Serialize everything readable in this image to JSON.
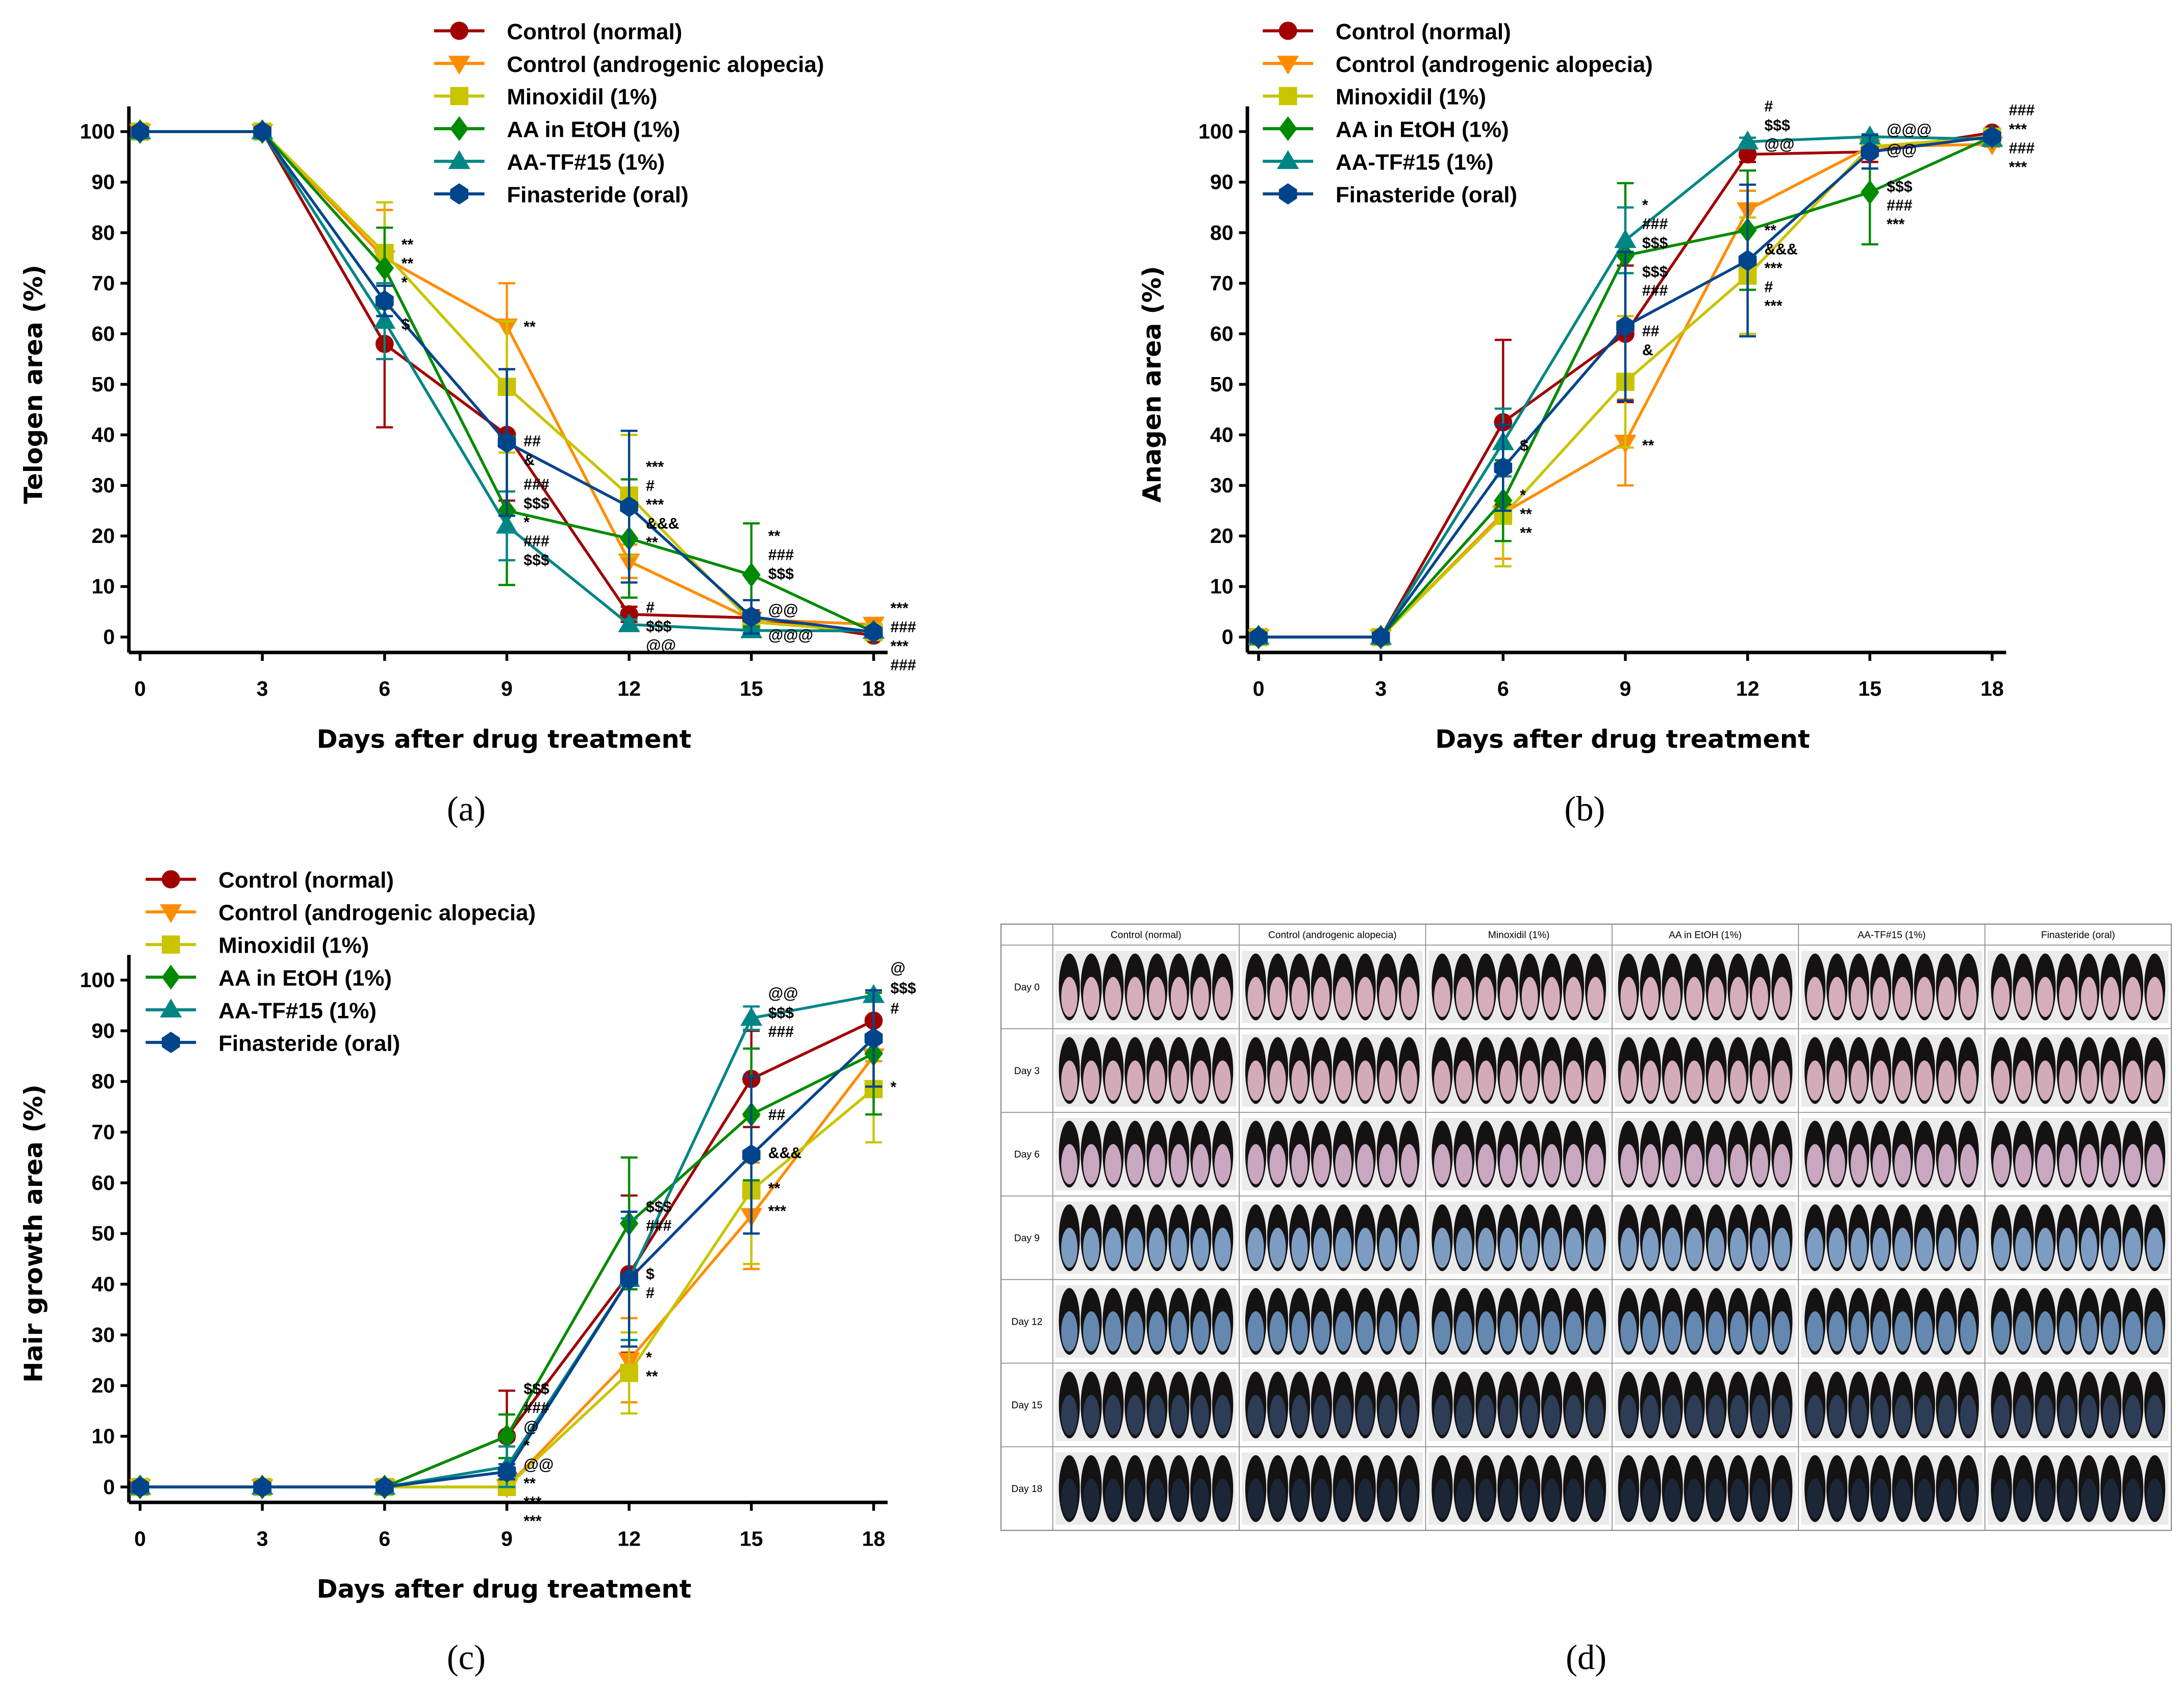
{
  "series_style": [
    {
      "name": "Control (normal)",
      "color": "#a00000",
      "marker": "circle"
    },
    {
      "name": "Control (androgenic alopecia)",
      "color": "#ff8c00",
      "marker": "triangle-down"
    },
    {
      "name": "Minoxidil (1%)",
      "color": "#c8c400",
      "marker": "square"
    },
    {
      "name": "AA in EtOH (1%)",
      "color": "#008a00",
      "marker": "diamond"
    },
    {
      "name": "AA-TF#15 (1%)",
      "color": "#008585",
      "marker": "triangle-up"
    },
    {
      "name": "Finasteride (oral)",
      "color": "#00448c",
      "marker": "hexagon"
    }
  ],
  "chart_data": [
    {
      "panel": "(a)",
      "type": "line",
      "xlabel": "Days after drug treatment",
      "ylabel": "Telogen area (%)",
      "x": [
        0,
        3,
        6,
        9,
        12,
        15,
        18
      ],
      "xticks": [
        "0",
        "3",
        "6",
        "9",
        "12",
        "15",
        "18"
      ],
      "yticks": [
        "0",
        "10",
        "20",
        "30",
        "40",
        "50",
        "60",
        "70",
        "80",
        "90",
        "100"
      ],
      "ylim": [
        0,
        100
      ],
      "legend": "top-center",
      "series": [
        {
          "name": "Control (normal)",
          "values": [
            100,
            100,
            58,
            40,
            4.5,
            3.8,
            0.3
          ],
          "errors": [
            0,
            0,
            16.5,
            13,
            1.5,
            1.5,
            0
          ]
        },
        {
          "name": "Control (androgenic alopecia)",
          "values": [
            100,
            100,
            75,
            61.5,
            15,
            3.5,
            2.5
          ],
          "errors": [
            0,
            0,
            9.5,
            8.5,
            3.3,
            1.5,
            0
          ]
        },
        {
          "name": "Minoxidil (1%)",
          "values": [
            100,
            100,
            76,
            49.5,
            28,
            3,
            1
          ],
          "errors": [
            0,
            0,
            10,
            13,
            12,
            1.5,
            0
          ]
        },
        {
          "name": "AA in EtOH (1%)",
          "values": [
            100,
            100,
            73,
            25,
            19.5,
            12.3,
            1
          ],
          "errors": [
            0,
            0,
            8,
            14.7,
            11.7,
            10.2,
            0
          ]
        },
        {
          "name": "AA-TF#15 (1%)",
          "values": [
            100,
            100,
            62.5,
            22,
            2.5,
            1.3,
            1.2
          ],
          "errors": [
            0,
            0,
            7.5,
            6.8,
            1,
            0.5,
            0
          ]
        },
        {
          "name": "Finasteride (oral)",
          "values": [
            100,
            100,
            66.5,
            38.5,
            25.8,
            4,
            1
          ],
          "errors": [
            0,
            0,
            3,
            14.5,
            15,
            3.3,
            0
          ]
        }
      ],
      "annotations": [
        {
          "x": 6,
          "y": 76.5,
          "text": "**"
        },
        {
          "x": 6,
          "y": 74,
          "text": "**"
        },
        {
          "x": 6,
          "y": 71.5,
          "text": "*"
        },
        {
          "x": 6,
          "y": 62,
          "text": "$"
        },
        {
          "x": 9,
          "y": 61.5,
          "text": "**"
        },
        {
          "x": 9,
          "y": 38.5,
          "text": "##"
        },
        {
          "x": 9,
          "y": 35.5,
          "text": "&"
        },
        {
          "x": 9,
          "y": 29.5,
          "text": "###"
        },
        {
          "x": 9,
          "y": 26,
          "text": "$$$"
        },
        {
          "x": 9,
          "y": 22.5,
          "text": "*"
        },
        {
          "x": 9,
          "y": 19.5,
          "text": "###"
        },
        {
          "x": 9,
          "y": 16.5,
          "text": "$$$"
        },
        {
          "x": 12,
          "y": 33,
          "text": "***"
        },
        {
          "x": 12,
          "y": 30.5,
          "text": "#"
        },
        {
          "x": 12,
          "y": 26,
          "text": "***"
        },
        {
          "x": 12,
          "y": 23,
          "text": "&&&"
        },
        {
          "x": 12,
          "y": 19,
          "text": "**"
        },
        {
          "x": 12,
          "y": 5.5,
          "text": "#"
        },
        {
          "x": 12,
          "y": 2,
          "text": "$$$"
        },
        {
          "x": 12,
          "y": -0.8,
          "text": "@@"
        },
        {
          "x": 15,
          "y": 19.5,
          "text": "**"
        },
        {
          "x": 15,
          "y": 16.5,
          "text": "###"
        },
        {
          "x": 15,
          "y": 13,
          "text": "$$$"
        },
        {
          "x": 15,
          "y": 5.5,
          "text": "@@"
        },
        {
          "x": 15,
          "y": 0.5,
          "text": "@@@"
        },
        {
          "x": 18,
          "y": 4.3,
          "text": "***"
        },
        {
          "x": 18,
          "y": 1.5,
          "text": "###"
        },
        {
          "x": 18,
          "y": -1.3,
          "text": "***"
        },
        {
          "x": 18,
          "y": -3.8,
          "text": "###"
        }
      ]
    },
    {
      "panel": "(b)",
      "type": "line",
      "xlabel": "Days after drug treatment",
      "ylabel": "Anagen area (%)",
      "x": [
        0,
        3,
        6,
        9,
        12,
        15,
        18
      ],
      "xticks": [
        "0",
        "3",
        "6",
        "9",
        "12",
        "15",
        "18"
      ],
      "yticks": [
        "0",
        "10",
        "20",
        "30",
        "40",
        "50",
        "60",
        "70",
        "80",
        "90",
        "100"
      ],
      "ylim": [
        0,
        100
      ],
      "legend": "top-center",
      "series": [
        {
          "name": "Control (normal)",
          "values": [
            0,
            0,
            42.5,
            60,
            95.5,
            96,
            99.8
          ],
          "errors": [
            0,
            0,
            16.3,
            13.5,
            1.5,
            2,
            0
          ]
        },
        {
          "name": "Control (androgenic alopecia)",
          "values": [
            0,
            0,
            24.5,
            38.5,
            84.5,
            97,
            97.5
          ],
          "errors": [
            0,
            0,
            9,
            8.5,
            3.8,
            1.5,
            0.5
          ]
        },
        {
          "name": "Minoxidil (1%)",
          "values": [
            0,
            0,
            24,
            50.5,
            71.5,
            97,
            99
          ],
          "errors": [
            0,
            0,
            10,
            13,
            11.5,
            1.5,
            0
          ]
        },
        {
          "name": "AA in EtOH (1%)",
          "values": [
            0,
            0,
            27,
            75.5,
            80.5,
            88,
            99
          ],
          "errors": [
            0,
            0,
            8,
            14.3,
            11.8,
            10.3,
            0
          ]
        },
        {
          "name": "AA-TF#15 (1%)",
          "values": [
            0,
            0,
            38.5,
            78.5,
            98,
            99,
            98.5
          ],
          "errors": [
            0,
            0,
            6.7,
            6.5,
            0.8,
            0.5,
            0
          ]
        },
        {
          "name": "Finasteride (oral)",
          "values": [
            0,
            0,
            33.5,
            61.5,
            74.5,
            96,
            99
          ],
          "errors": [
            0,
            0,
            8.5,
            14.7,
            15,
            3.3,
            0
          ]
        }
      ],
      "annotations": [
        {
          "x": 6,
          "y": 38,
          "text": "$"
        },
        {
          "x": 6,
          "y": 27.5,
          "text": "*"
        },
        {
          "x": 6,
          "y": 24.5,
          "text": "**"
        },
        {
          "x": 6,
          "y": 21.3,
          "text": "**"
        },
        {
          "x": 9,
          "y": 85,
          "text": "*"
        },
        {
          "x": 9,
          "y": 82,
          "text": "###"
        },
        {
          "x": 9,
          "y": 78.5,
          "text": "$$$"
        },
        {
          "x": 9,
          "y": 72,
          "text": "$$$"
        },
        {
          "x": 9,
          "y": 69,
          "text": "###"
        },
        {
          "x": 9,
          "y": 60.5,
          "text": "##"
        },
        {
          "x": 9,
          "y": 57,
          "text": "&"
        },
        {
          "x": 9,
          "y": 38,
          "text": "**"
        },
        {
          "x": 12,
          "y": 104.5,
          "text": "#"
        },
        {
          "x": 12,
          "y": 101.5,
          "text": "$$$"
        },
        {
          "x": 12,
          "y": 98,
          "text": "@@"
        },
        {
          "x": 12,
          "y": 80.5,
          "text": "**"
        },
        {
          "x": 12,
          "y": 76,
          "text": "&&&"
        },
        {
          "x": 12,
          "y": 73,
          "text": "***"
        },
        {
          "x": 12,
          "y": 69.5,
          "text": "#"
        },
        {
          "x": 12,
          "y": 66.5,
          "text": "***"
        },
        {
          "x": 15,
          "y": 100.5,
          "text": "@@@"
        },
        {
          "x": 15,
          "y": 96.5,
          "text": "@@"
        },
        {
          "x": 15,
          "y": 88.5,
          "text": "$$$"
        },
        {
          "x": 15,
          "y": 85.5,
          "text": "###"
        },
        {
          "x": 15,
          "y": 82.5,
          "text": "***"
        },
        {
          "x": 18,
          "y": 103,
          "text": "###"
        },
        {
          "x": 18,
          "y": 100,
          "text": "***"
        },
        {
          "x": 18,
          "y": 97.5,
          "text": "###"
        },
        {
          "x": 18,
          "y": 94.3,
          "text": "***"
        }
      ]
    },
    {
      "panel": "(c)",
      "type": "line",
      "xlabel": "Days after drug treatment",
      "ylabel": "Hair growth area (%)",
      "x": [
        0,
        3,
        6,
        9,
        12,
        15,
        18
      ],
      "xticks": [
        "0",
        "3",
        "6",
        "9",
        "12",
        "15",
        "18"
      ],
      "yticks": [
        "0",
        "10",
        "20",
        "30",
        "40",
        "50",
        "60",
        "70",
        "80",
        "90",
        "100"
      ],
      "ylim": [
        0,
        100
      ],
      "legend": "top-left",
      "series": [
        {
          "name": "Control (normal)",
          "values": [
            0,
            0,
            0,
            10,
            42,
            80.5,
            92
          ],
          "errors": [
            0,
            0,
            0,
            9,
            15.5,
            9.5,
            4
          ]
        },
        {
          "name": "Control (androgenic alopecia)",
          "values": [
            0,
            0,
            0,
            0,
            25,
            53.5,
            85
          ],
          "errors": [
            0,
            0,
            0,
            0.5,
            8.3,
            10.5,
            1
          ]
        },
        {
          "name": "Minoxidil (1%)",
          "values": [
            0,
            0,
            0,
            0,
            22.5,
            58.5,
            78.5
          ],
          "errors": [
            0,
            0,
            0,
            0.5,
            8,
            14.5,
            10.5
          ]
        },
        {
          "name": "AA in EtOH (1%)",
          "values": [
            0,
            0,
            0,
            10,
            52,
            73.5,
            85.5
          ],
          "errors": [
            0,
            0,
            0,
            4.3,
            13,
            13,
            12
          ]
        },
        {
          "name": "AA-TF#15 (1%)",
          "values": [
            0,
            0,
            0,
            4,
            41,
            92.5,
            97
          ],
          "errors": [
            0,
            0,
            0,
            4,
            12,
            2.3,
            1
          ]
        },
        {
          "name": "Finasteride (oral)",
          "values": [
            0,
            0,
            0,
            3,
            41,
            65.5,
            88.5
          ],
          "errors": [
            0,
            0,
            0,
            1.5,
            13.3,
            15.5,
            9.5
          ]
        }
      ],
      "annotations": [
        {
          "x": 9,
          "y": 16,
          "text": "$$$"
        },
        {
          "x": 9,
          "y": 13,
          "text": "###"
        },
        {
          "x": 9,
          "y": 10,
          "text": "@"
        },
        {
          "x": 9,
          "y": 7.5,
          "text": "*"
        },
        {
          "x": 9,
          "y": 4.8,
          "text": "@@"
        },
        {
          "x": 9,
          "y": 2.5,
          "text": "**"
        },
        {
          "x": 9,
          "y": 0,
          "text": "***"
        },
        {
          "x": 9,
          "y": -2.5,
          "text": "***"
        },
        {
          "x": 12,
          "y": 55,
          "text": "$$$"
        },
        {
          "x": 12,
          "y": 52,
          "text": "###"
        },
        {
          "x": 12,
          "y": 42,
          "text": "$"
        },
        {
          "x": 12,
          "y": 38.5,
          "text": "#"
        },
        {
          "x": 12,
          "y": 25.5,
          "text": "*"
        },
        {
          "x": 12,
          "y": 22,
          "text": "**"
        },
        {
          "x": 15,
          "y": 97.5,
          "text": "@@"
        },
        {
          "x": 15,
          "y": 93.5,
          "text": "$$$"
        },
        {
          "x": 15,
          "y": 90,
          "text": "###"
        },
        {
          "x": 15,
          "y": 73.5,
          "text": "##"
        },
        {
          "x": 15,
          "y": 66,
          "text": "&&&"
        },
        {
          "x": 15,
          "y": 59,
          "text": "**"
        },
        {
          "x": 15,
          "y": 54.5,
          "text": "***"
        },
        {
          "x": 18,
          "y": 102.5,
          "text": "@"
        },
        {
          "x": 18,
          "y": 98.5,
          "text": "$$$"
        },
        {
          "x": 18,
          "y": 94.5,
          "text": "#"
        },
        {
          "x": 18,
          "y": 79,
          "text": "*"
        }
      ]
    }
  ],
  "photo_panel": {
    "label": "(d)",
    "column_headers": [
      "Control (normal)",
      "Control (androgenic alopecia)",
      "Minoxidil (1%)",
      "AA in EtOH (1%)",
      "AA-TF#15 (1%)",
      "Finasteride (oral)"
    ],
    "row_labels": [
      "Day 0",
      "Day 3",
      "Day 6",
      "Day 9",
      "Day 12",
      "Day 15",
      "Day 18"
    ]
  }
}
